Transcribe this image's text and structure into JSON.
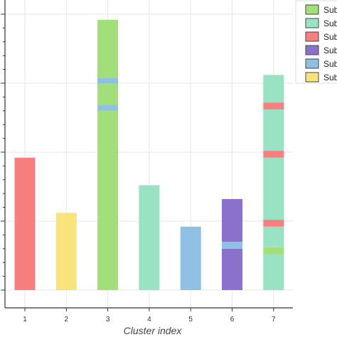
{
  "chart_data": {
    "type": "bar",
    "title": "",
    "xlabel": "Cluster index",
    "ylabel": "",
    "categories": [
      "1",
      "2",
      "3",
      "4",
      "5",
      "6",
      "7"
    ],
    "ylim": [
      0,
      20
    ],
    "grid": true,
    "legend_position": "right, partially cropped",
    "bars": [
      {
        "category": "1",
        "segments": [
          {
            "series": 2,
            "from": 0,
            "to": 9.6
          }
        ]
      },
      {
        "category": "2",
        "segments": [
          {
            "series": 5,
            "from": 0,
            "to": 5.6
          }
        ]
      },
      {
        "category": "3",
        "segments": [
          {
            "series": 0,
            "from": 0,
            "to": 13.0
          },
          {
            "series": 4,
            "from": 13.0,
            "to": 13.4
          },
          {
            "series": 0,
            "from": 13.4,
            "to": 15.0
          },
          {
            "series": 4,
            "from": 15.0,
            "to": 15.4
          },
          {
            "series": 0,
            "from": 15.4,
            "to": 19.6
          }
        ]
      },
      {
        "category": "4",
        "segments": [
          {
            "series": 1,
            "from": 0,
            "to": 7.6
          }
        ]
      },
      {
        "category": "5",
        "segments": [
          {
            "series": 4,
            "from": 0,
            "to": 4.6
          }
        ]
      },
      {
        "category": "6",
        "segments": [
          {
            "series": 3,
            "from": 0,
            "to": 3.0
          },
          {
            "series": 4,
            "from": 3.0,
            "to": 3.5
          },
          {
            "series": 3,
            "from": 3.5,
            "to": 6.6
          }
        ]
      },
      {
        "category": "7",
        "segments": [
          {
            "series": 1,
            "from": 0,
            "to": 2.6
          },
          {
            "series": 0,
            "from": 2.6,
            "to": 3.1
          },
          {
            "series": 1,
            "from": 3.1,
            "to": 4.6
          },
          {
            "series": 2,
            "from": 4.6,
            "to": 5.1
          },
          {
            "series": 1,
            "from": 5.1,
            "to": 9.6
          },
          {
            "series": 2,
            "from": 9.6,
            "to": 10.1
          },
          {
            "series": 1,
            "from": 10.1,
            "to": 13.1
          },
          {
            "series": 2,
            "from": 13.1,
            "to": 13.6
          },
          {
            "series": 1,
            "from": 13.6,
            "to": 15.6
          }
        ]
      }
    ],
    "series": [
      {
        "name": "Sub",
        "color": "#a2de7a"
      },
      {
        "name": "Sub",
        "color": "#99e3c4"
      },
      {
        "name": "Sub",
        "color": "#f77f7f"
      },
      {
        "name": "Sub",
        "color": "#8a72cc"
      },
      {
        "name": "Sub",
        "color": "#8fbfe3"
      },
      {
        "name": "Sub",
        "color": "#f8e47a"
      }
    ]
  }
}
